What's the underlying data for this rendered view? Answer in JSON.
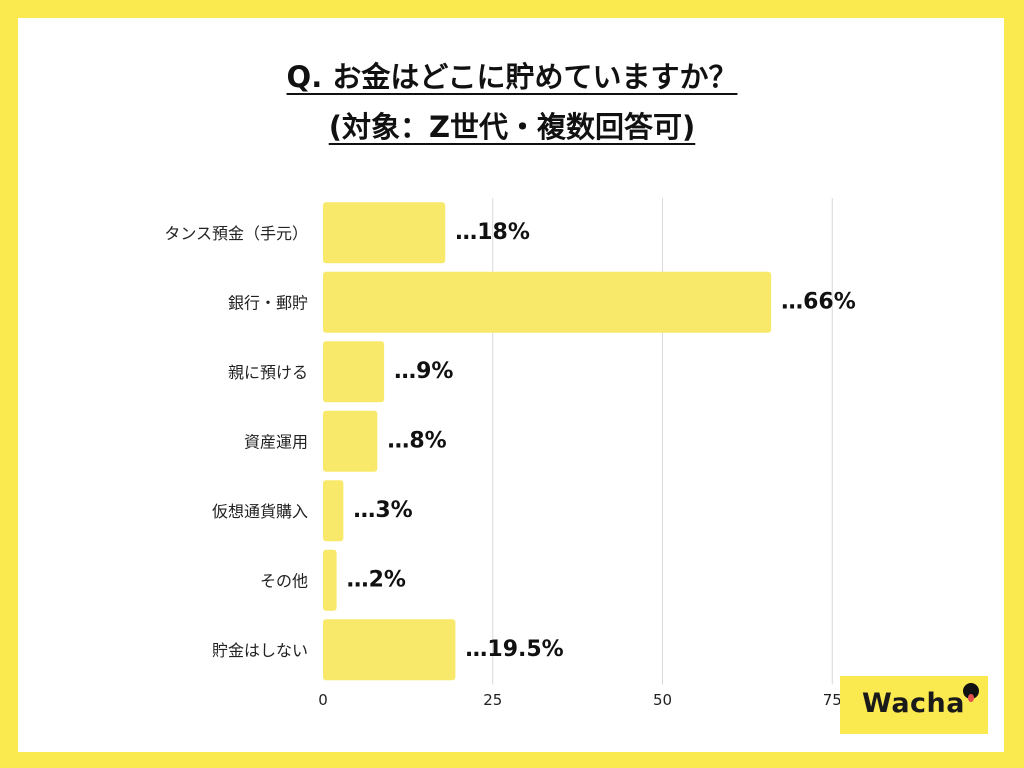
{
  "title_line1": "Q. お金はどこに貯めていますか？",
  "title_line2": "(対象：Z世代・複数回答可)",
  "brand": "Wacha",
  "colors": {
    "background": "#fbea4f",
    "bar": "#f8e96a",
    "grid": "#d9d9d9",
    "text": "#111111"
  },
  "chart_data": {
    "type": "bar",
    "orientation": "horizontal",
    "categories": [
      "タンス預金（手元）",
      "銀行・郵貯",
      "親に預ける",
      "資産運用",
      "仮想通貨購入",
      "その他",
      "貯金はしない"
    ],
    "values": [
      18,
      66,
      9,
      8,
      3,
      2,
      19.5
    ],
    "data_labels": [
      "…18%",
      "…66%",
      "…9%",
      "…8%",
      "…3%",
      "…2%",
      "…19.5%"
    ],
    "xticks": [
      0,
      25,
      50,
      75
    ],
    "xlim": [
      0,
      75
    ],
    "grid": true
  }
}
